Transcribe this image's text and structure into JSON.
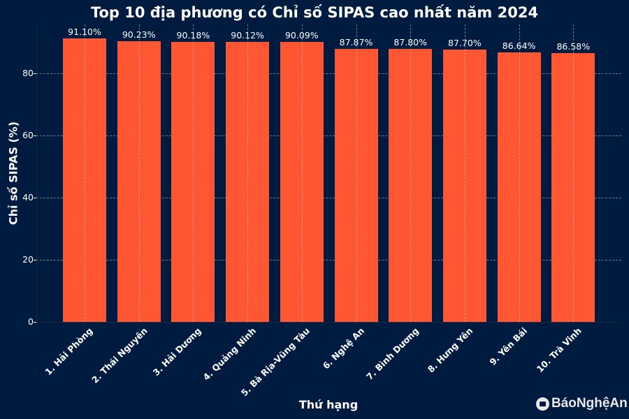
{
  "chart_data": {
    "type": "bar",
    "title": "Top 10 địa phương có Chỉ số SIPAS cao nhất năm 2024",
    "xlabel": "Thứ hạng",
    "ylabel": "Chỉ số SIPAS (%)",
    "categories": [
      "1. Hải Phòng",
      "2. Thái Nguyên",
      "3. Hải Dương",
      "4. Quảng Ninh",
      "5. Bà Rịa-Vũng Tàu",
      "6. Nghệ An",
      "7. Bình Dương",
      "8. Hưng Yên",
      "9. Yên Bái",
      "10. Trà Vinh"
    ],
    "values": [
      91.1,
      90.23,
      90.18,
      90.12,
      90.09,
      87.87,
      87.8,
      87.7,
      86.64,
      86.58
    ],
    "value_labels": [
      "91.10%",
      "90.23%",
      "90.18%",
      "90.12%",
      "90.09%",
      "87.87%",
      "87.80%",
      "87.70%",
      "86.64%",
      "86.58%"
    ],
    "yticks": [
      "0",
      "20",
      "40",
      "60",
      "80"
    ],
    "ylim": [
      0,
      95.7
    ],
    "grid": true,
    "legend": null,
    "bar_color": "#ff5733",
    "background_color": "#001b40"
  },
  "watermark": "BáoNghệAn"
}
